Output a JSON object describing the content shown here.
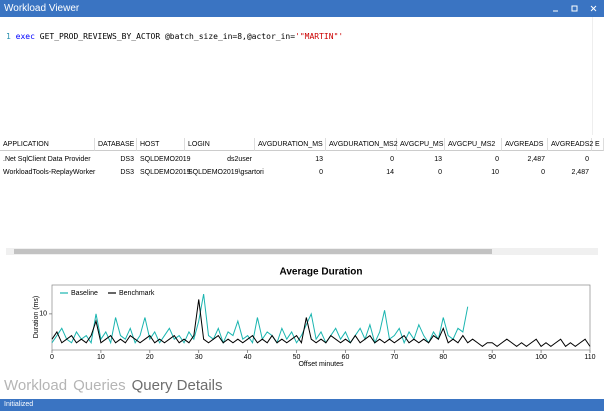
{
  "window": {
    "title": "Workload Viewer"
  },
  "editor": {
    "line_number": "1",
    "keyword": "exec",
    "code": "GET_PROD_REVIEWS_BY_ACTOR @batch_size_in=8,@actor_in=",
    "string": "'\"MARTIN\"'"
  },
  "table": {
    "headers": [
      "APPLICATION",
      "DATABASE",
      "HOST",
      "LOGIN",
      "AVGDURATION_MS",
      "AVGDURATION_MS2",
      "AVGCPU_MS",
      "AVGCPU_MS2",
      "AVGREADS",
      "AVGREADS2",
      "E"
    ],
    "rows": [
      [
        ".Net SqlClient Data Provider",
        "DS3",
        "SQLDEMO2019",
        "ds2user",
        "13",
        "0",
        "13",
        "0",
        "2,487",
        "0"
      ],
      [
        "WorkloadTools-ReplayWorker",
        "DS3",
        "SQLDEMO2019",
        "SQLDEMO2019\\gsartori",
        "0",
        "14",
        "0",
        "10",
        "0",
        "2,487"
      ]
    ]
  },
  "chart_data": {
    "type": "line",
    "title": "Average Duration",
    "x_label": "Offset minutes",
    "y_label": "Duration (ms)",
    "xlim": [
      0,
      110
    ],
    "ylim": [
      0,
      18
    ],
    "xticks": [
      0,
      10,
      20,
      30,
      40,
      50,
      60,
      70,
      80,
      90,
      100,
      110
    ],
    "yticks": [
      10
    ],
    "legend": "top-left",
    "x": [
      0,
      1,
      2,
      3,
      4,
      5,
      6,
      7,
      8,
      9,
      10,
      11,
      12,
      13,
      14,
      15,
      16,
      17,
      18,
      19,
      20,
      21,
      22,
      23,
      24,
      25,
      26,
      27,
      28,
      29,
      30,
      31,
      32,
      33,
      34,
      35,
      36,
      37,
      38,
      39,
      40,
      41,
      42,
      43,
      44,
      45,
      46,
      47,
      48,
      49,
      50,
      51,
      52,
      53,
      54,
      55,
      56,
      57,
      58,
      59,
      60,
      61,
      62,
      63,
      64,
      65,
      66,
      67,
      68,
      69,
      70,
      71,
      72,
      73,
      74,
      75,
      76,
      77,
      78,
      79,
      80,
      81,
      82,
      83,
      84,
      85,
      86,
      87,
      88,
      89,
      90,
      91,
      92,
      93,
      94,
      95,
      96,
      97,
      98,
      99,
      100,
      101,
      102,
      103,
      104,
      105,
      106,
      107,
      108,
      109,
      110
    ],
    "series": [
      {
        "name": "Baseline",
        "color": "#1ab5b0",
        "values": [
          2,
          4,
          6,
          3,
          2,
          5,
          3,
          4,
          2,
          10,
          3,
          5,
          2,
          9,
          4,
          3,
          6,
          2,
          4,
          9,
          3,
          5,
          2,
          4,
          6,
          3,
          4,
          2,
          5,
          3,
          8,
          15.5,
          4,
          3,
          6,
          2,
          5,
          4,
          8,
          3,
          4,
          2,
          9,
          3,
          5,
          4,
          2,
          6,
          3,
          5,
          2,
          4,
          7,
          10,
          3,
          5,
          2,
          4,
          6,
          3,
          5,
          2,
          4,
          6,
          3,
          7,
          2,
          5,
          11,
          3,
          4,
          6,
          2,
          5,
          3,
          7,
          4,
          2,
          5,
          3,
          9,
          4,
          3,
          6,
          5,
          12,
          null,
          null,
          null,
          null,
          null,
          null,
          null,
          null,
          null,
          null,
          null,
          null,
          null,
          null,
          null,
          null,
          null,
          null,
          null,
          null,
          null,
          null,
          null,
          null,
          null
        ]
      },
      {
        "name": "Benchmark",
        "color": "#000000",
        "values": [
          3,
          5,
          2,
          3,
          4,
          2,
          3,
          2,
          4,
          8,
          2,
          3,
          4,
          2,
          3,
          2,
          4,
          3,
          2,
          3,
          4,
          2,
          3,
          2,
          3,
          4,
          2,
          3,
          2,
          4,
          14,
          3,
          2,
          3,
          4,
          2,
          3,
          2,
          3,
          2,
          3,
          4,
          2,
          3,
          2,
          4,
          2,
          3,
          2,
          3,
          4,
          2,
          9,
          3,
          2,
          3,
          2,
          4,
          3,
          2,
          3,
          2,
          4,
          2,
          3,
          4,
          2,
          3,
          2,
          3,
          2,
          3,
          4,
          2,
          3,
          2,
          3,
          2,
          4,
          3,
          6,
          2,
          3,
          2,
          4,
          2,
          3,
          2,
          1,
          2,
          2,
          1,
          2,
          3,
          2,
          1,
          2,
          1,
          2,
          3,
          1,
          2,
          1,
          2,
          3,
          1,
          2,
          1,
          2,
          3,
          1
        ]
      }
    ]
  },
  "tabs": [
    "Workload",
    "Queries",
    "Query Details"
  ],
  "status": "Initialized"
}
